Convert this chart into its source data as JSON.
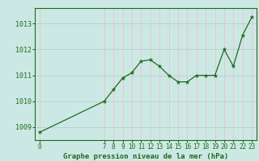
{
  "x": [
    0,
    7,
    8,
    9,
    10,
    11,
    12,
    13,
    14,
    15,
    16,
    17,
    18,
    19,
    20,
    21,
    22,
    23
  ],
  "y": [
    1008.8,
    1010.0,
    1010.45,
    1010.9,
    1011.1,
    1011.55,
    1011.6,
    1011.35,
    1011.0,
    1010.75,
    1010.75,
    1011.0,
    1011.0,
    1011.0,
    1012.0,
    1011.35,
    1012.55,
    1013.25
  ],
  "bg_color": "#cce8e4",
  "line_color": "#1e6b1e",
  "marker_color": "#1e6b1e",
  "grid_color_v": "#e8c8c8",
  "grid_color_h": "#b8d4d0",
  "axis_color": "#1e6b1e",
  "title": "Graphe pression niveau de la mer (hPa)",
  "xlim": [
    -0.5,
    23.5
  ],
  "ylim": [
    1008.5,
    1013.6
  ],
  "yticks": [
    1009,
    1010,
    1011,
    1012,
    1013
  ],
  "xticks": [
    0,
    7,
    8,
    9,
    10,
    11,
    12,
    13,
    14,
    15,
    16,
    17,
    18,
    19,
    20,
    21,
    22,
    23
  ]
}
